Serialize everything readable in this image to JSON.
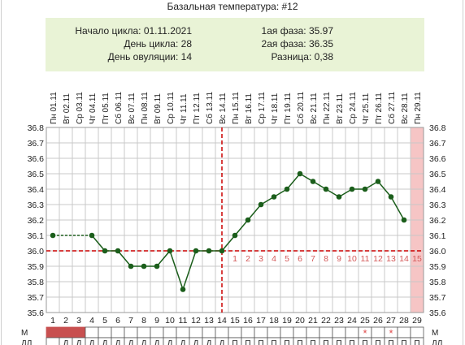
{
  "title": "Базальная температура: #12",
  "info": {
    "cycle_start": "Начало цикла: 01.11.2021",
    "cycle_day": "День цикла: 28",
    "ovulation_day": "День овуляции: 14",
    "phase1": "1ая фаза: 35.97",
    "phase2": "2ая фаза: 36.35",
    "difference": "Разница: 0,38"
  },
  "colors": {
    "info_bg": "#e9f3d6",
    "line": "#1b5e1b",
    "points": "#1b5e1b",
    "dashed_line": "#cc0000",
    "phase2_numbers": "#d45a5a",
    "future_day": "#f6c5c5",
    "period": "#c85050",
    "grid": "#c8c8c8",
    "star": "#e04a4a"
  },
  "chart_data": {
    "type": "line",
    "title": "Базальная температура: #12",
    "days": [
      1,
      2,
      3,
      4,
      5,
      6,
      7,
      8,
      9,
      10,
      11,
      12,
      13,
      14,
      15,
      16,
      17,
      18,
      19,
      20,
      21,
      22,
      23,
      24,
      25,
      26,
      27,
      28,
      29
    ],
    "dates": [
      "Пн 01.11",
      "Вт 02.11",
      "Ср 03.11",
      "Чт 04.11",
      "Пт 05.11",
      "Сб 06.11",
      "Вс 07.11",
      "Пн 08.11",
      "Вт 09.11",
      "Ср 10.11",
      "Чт 11.11",
      "Пт 12.11",
      "Сб 13.11",
      "Вс 14.11",
      "Пн 15.11",
      "Вт 16.11",
      "Ср 17.11",
      "Чт 18.11",
      "Пт 19.11",
      "Сб 20.11",
      "Вс 21.11",
      "Пн 22.11",
      "Вт 23.11",
      "Ср 24.11",
      "Чт 25.11",
      "Пт 26.11",
      "Сб 27.11",
      "Вс 28.11",
      "Пн 29.11"
    ],
    "temperatures": [
      36.1,
      null,
      null,
      36.1,
      36.0,
      36.0,
      35.9,
      35.9,
      35.9,
      36.0,
      35.75,
      36.0,
      36.0,
      36.0,
      36.1,
      36.2,
      36.3,
      36.35,
      36.4,
      36.5,
      36.45,
      36.4,
      36.35,
      36.4,
      36.4,
      36.45,
      36.35,
      36.2,
      null
    ],
    "y_ticks": [
      "35.6",
      "35.7",
      "35.8",
      "35.9",
      "36.0",
      "36.1",
      "36.2",
      "36.3",
      "36.4",
      "36.5",
      "36.6",
      "36.7",
      "36.8"
    ],
    "ylim": [
      35.6,
      36.8
    ],
    "coverline": 36.0,
    "ovulation_day": 14,
    "phase2_numbers": [
      "1",
      "2",
      "3",
      "4",
      "5",
      "6",
      "7",
      "8",
      "9",
      "10",
      "11",
      "12",
      "13",
      "14",
      "15"
    ],
    "future_day": 29,
    "grid": true
  },
  "footer": {
    "row1_label": "М",
    "row2_label": "ДЛ",
    "period_days": [
      1,
      2,
      3
    ],
    "star_days": [
      25,
      27
    ],
    "star_glyph": "*",
    "row2_values": [
      "",
      "Д",
      "Д",
      "Д",
      "Д",
      "Д",
      "Д",
      "Д",
      "Д",
      "Д",
      "Д",
      "Д",
      "Д",
      "Д",
      "П",
      "П",
      "П",
      "П",
      "П",
      "П",
      "П",
      "П",
      "П",
      "П",
      "П",
      "П",
      "П",
      "П",
      "П"
    ]
  }
}
